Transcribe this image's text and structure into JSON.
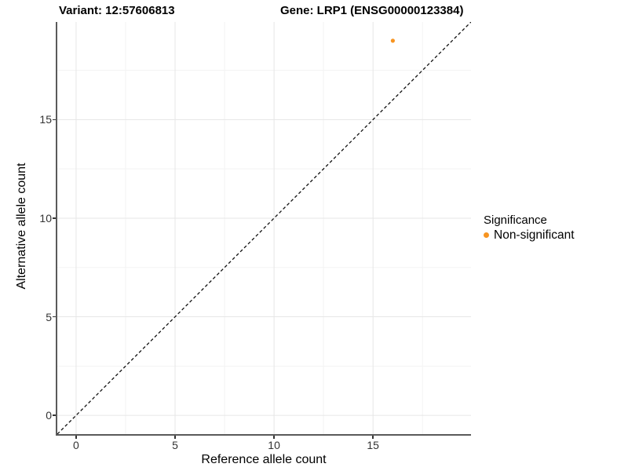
{
  "header": {
    "left_title": "Variant: 12:57606813",
    "right_title": "Gene: LRP1 (ENSG00000123384)"
  },
  "axes": {
    "x": {
      "label": "Reference allele count",
      "ticks": [
        "0",
        "5",
        "10",
        "15"
      ]
    },
    "y": {
      "label": "Alternative allele count",
      "ticks": [
        "0",
        "5",
        "10",
        "15"
      ]
    }
  },
  "legend": {
    "title": "Significance",
    "items": [
      {
        "label": "Non-significant",
        "color": "#F79421",
        "marker": "circle"
      }
    ]
  },
  "chart_data": {
    "type": "scatter",
    "points": [
      {
        "x": 16,
        "y": 19,
        "series": "Non-significant"
      }
    ],
    "series": [
      {
        "name": "Non-significant",
        "color": "#F79421"
      }
    ],
    "xlabel": "Reference allele count",
    "ylabel": "Alternative allele count",
    "xlim": [
      -0.95,
      19.95
    ],
    "ylim": [
      -0.95,
      19.95
    ],
    "x_major_ticks": [
      0,
      5,
      10,
      15
    ],
    "y_major_ticks": [
      0,
      5,
      10,
      15
    ],
    "x_minor_ticks": [
      2.5,
      7.5,
      12.5,
      17.5
    ],
    "y_minor_ticks": [
      2.5,
      7.5,
      12.5,
      17.5
    ],
    "grid": true,
    "reference_line": {
      "type": "identity",
      "style": "dashed",
      "color": "#111111"
    },
    "legend_position": "right",
    "point_radius_px": 2.6
  },
  "style": {
    "grid_major": "#e6e6e6",
    "grid_minor": "#f3f3f3",
    "axis_line": "#5a5a5a",
    "background": "#ffffff"
  }
}
